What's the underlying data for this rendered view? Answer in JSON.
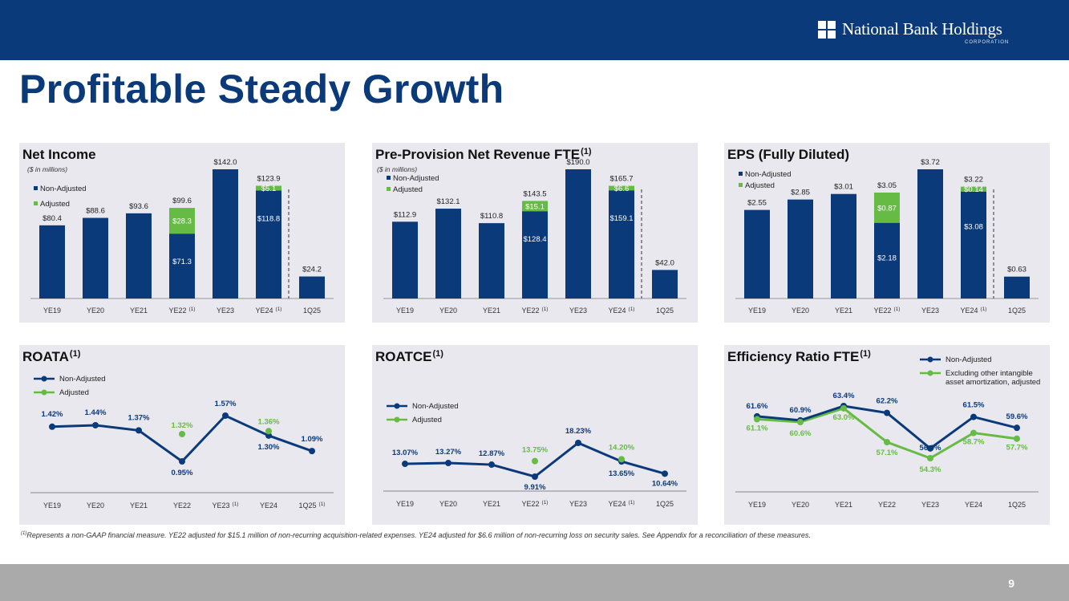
{
  "brand": {
    "name": "National Bank Holdings",
    "subtitle": "CORPORATION",
    "colors": {
      "navy": "#0b3a7a",
      "green": "#66bb44",
      "panel": "#e8e8ee",
      "footer": "#aaaaaa"
    }
  },
  "page": {
    "title": "Profitable Steady Growth",
    "number": "9"
  },
  "footnote": {
    "marker": "(1)",
    "text": "Represents a non-GAAP financial measure. YE22 adjusted for $15.1 million of non-recurring acquisition-related expenses. YE24 adjusted for $6.6 million of non-recurring loss on security sales. See Appendix for a reconciliation of these measures."
  },
  "chart_data": [
    {
      "id": "net_income",
      "type": "bar",
      "stacked": true,
      "title": "Net Income",
      "title_sup": "",
      "subtitle": "($ in millions)",
      "categories": [
        "YE19",
        "YE20",
        "YE21",
        "YE22",
        "YE23",
        "YE24",
        "1Q25"
      ],
      "category_sups": [
        "",
        "",
        "",
        "(1)",
        "",
        "(1)",
        ""
      ],
      "series": [
        {
          "name": "Non-Adjusted",
          "values": [
            80.4,
            88.6,
            93.6,
            71.3,
            142.0,
            118.8,
            24.2
          ]
        },
        {
          "name": "Adjusted",
          "values": [
            0,
            0,
            0,
            28.3,
            0,
            5.1,
            0
          ]
        }
      ],
      "base_labels": [
        "$80.4",
        "$88.6",
        "$93.6",
        "$71.3",
        "$142.0",
        "$118.8",
        "$24.2"
      ],
      "adj_labels": [
        "",
        "",
        "",
        "$28.3",
        "",
        "$5.1",
        ""
      ],
      "total_labels": [
        "",
        "",
        "",
        "$99.6",
        "",
        "$123.9",
        ""
      ],
      "ylim": [
        0,
        142
      ],
      "divider_after": 5
    },
    {
      "id": "pprn",
      "type": "bar",
      "stacked": true,
      "title": "Pre-Provision Net Revenue FTE",
      "title_sup": "(1)",
      "subtitle": "($ in millions)",
      "categories": [
        "YE19",
        "YE20",
        "YE21",
        "YE22",
        "YE23",
        "YE24",
        "1Q25"
      ],
      "category_sups": [
        "",
        "",
        "",
        "(1)",
        "",
        "(1)",
        ""
      ],
      "series": [
        {
          "name": "Non-Adjusted",
          "values": [
            112.9,
            132.1,
            110.8,
            128.4,
            190.0,
            159.1,
            42.0
          ]
        },
        {
          "name": "Adjusted",
          "values": [
            0,
            0,
            0,
            15.1,
            0,
            6.6,
            0
          ]
        }
      ],
      "base_labels": [
        "$112.9",
        "$132.1",
        "$110.8",
        "$128.4",
        "$190.0",
        "$159.1",
        "$42.0"
      ],
      "adj_labels": [
        "",
        "",
        "",
        "$15.1",
        "",
        "$6.6",
        ""
      ],
      "total_labels": [
        "",
        "",
        "",
        "$143.5",
        "",
        "$165.7",
        ""
      ],
      "ylim": [
        0,
        190
      ],
      "divider_after": 5
    },
    {
      "id": "eps",
      "type": "bar",
      "stacked": true,
      "title": "EPS (Fully Diluted)",
      "title_sup": "",
      "subtitle": "",
      "categories": [
        "YE19",
        "YE20",
        "YE21",
        "YE22",
        "YE23",
        "YE24",
        "1Q25"
      ],
      "category_sups": [
        "",
        "",
        "",
        "(1)",
        "",
        "(1)",
        ""
      ],
      "series": [
        {
          "name": "Non-Adjusted",
          "values": [
            2.55,
            2.85,
            3.01,
            2.18,
            3.72,
            3.08,
            0.63
          ]
        },
        {
          "name": "Adjusted",
          "values": [
            0,
            0,
            0,
            0.87,
            0,
            0.14,
            0
          ]
        }
      ],
      "base_labels": [
        "$2.55",
        "$2.85",
        "$3.01",
        "$2.18",
        "$3.72",
        "$3.08",
        "$0.63"
      ],
      "adj_labels": [
        "",
        "",
        "",
        "$0.87",
        "",
        "$0.14",
        ""
      ],
      "total_labels": [
        "",
        "",
        "",
        "$3.05",
        "",
        "$3.22",
        ""
      ],
      "ylim": [
        0,
        3.72
      ],
      "divider_after": 5
    },
    {
      "id": "roata",
      "type": "line",
      "title": "ROATA",
      "title_sup": "(1)",
      "categories": [
        "YE19",
        "YE20",
        "YE21",
        "YE22",
        "YE23",
        "YE24",
        "1Q25"
      ],
      "category_sups": [
        "",
        "",
        "",
        "",
        "(1)",
        "",
        "(1)"
      ],
      "series": [
        {
          "name": "Non-Adjusted",
          "values": [
            1.42,
            1.44,
            1.37,
            0.95,
            1.57,
            1.3,
            1.09
          ],
          "labels": [
            "1.42%",
            "1.44%",
            "1.37%",
            "0.95%",
            "1.57%",
            "1.30%",
            "1.09%"
          ]
        },
        {
          "name": "Adjusted",
          "values": [
            null,
            null,
            null,
            1.32,
            null,
            1.36,
            null
          ],
          "labels": [
            "",
            "",
            "",
            "1.32%",
            "",
            "1.36%",
            ""
          ]
        }
      ],
      "ylim": [
        0.95,
        1.57
      ]
    },
    {
      "id": "roatce",
      "type": "line",
      "title": "ROATCE",
      "title_sup": "(1)",
      "categories": [
        "YE19",
        "YE20",
        "YE21",
        "YE22",
        "YE23",
        "YE24",
        "1Q25"
      ],
      "category_sups": [
        "",
        "",
        "",
        "(1)",
        "",
        "(1)",
        ""
      ],
      "series": [
        {
          "name": "Non-Adjusted",
          "values": [
            13.07,
            13.27,
            12.87,
            9.91,
            18.23,
            13.65,
            10.64
          ],
          "labels": [
            "13.07%",
            "13.27%",
            "12.87%",
            "9.91%",
            "18.23%",
            "13.65%",
            "10.64%"
          ]
        },
        {
          "name": "Adjusted",
          "values": [
            null,
            null,
            null,
            13.75,
            null,
            14.2,
            null
          ],
          "labels": [
            "",
            "",
            "",
            "13.75%",
            "",
            "14.20%",
            ""
          ]
        }
      ],
      "ylim": [
        9.91,
        18.23
      ]
    },
    {
      "id": "efficiency",
      "type": "line",
      "title": "Efficiency Ratio FTE",
      "title_sup": "(1)",
      "categories": [
        "YE19",
        "YE20",
        "YE21",
        "YE22",
        "YE23",
        "YE24",
        "1Q25"
      ],
      "category_sups": [
        "",
        "",
        "",
        "",
        "",
        "",
        ""
      ],
      "series": [
        {
          "name": "Non-Adjusted",
          "values": [
            61.6,
            60.9,
            63.4,
            62.2,
            56.0,
            61.5,
            59.6
          ],
          "labels": [
            "61.6%",
            "60.9%",
            "63.4%",
            "62.2%",
            "56.0%",
            "61.5%",
            "59.6%"
          ]
        },
        {
          "name": "Excluding other intangible asset amortization, adjusted",
          "legend_lines": [
            "Excluding other intangible",
            "asset amortization, adjusted"
          ],
          "values": [
            61.1,
            60.6,
            63.0,
            57.1,
            54.3,
            58.7,
            57.7
          ],
          "labels": [
            "61.1%",
            "60.6%",
            "63.0%",
            "57.1%",
            "54.3%",
            "58.7%",
            "57.7%"
          ]
        }
      ],
      "ylim": [
        54.3,
        63.4
      ]
    }
  ]
}
